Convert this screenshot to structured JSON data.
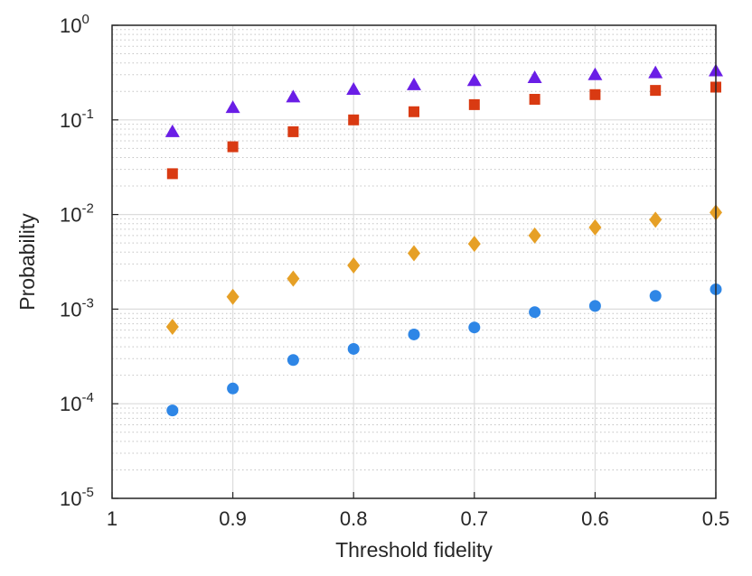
{
  "chart_data": {
    "type": "scatter",
    "title": "",
    "xlabel": "Threshold fidelity",
    "ylabel": "Probability",
    "x_reversed": true,
    "xlim": [
      0.5,
      1.0
    ],
    "y_scale": "log",
    "ylim": [
      1e-05,
      1
    ],
    "grid": true,
    "x_ticks": [
      {
        "value": 1.0,
        "label": "1"
      },
      {
        "value": 0.9,
        "label": "0.9"
      },
      {
        "value": 0.8,
        "label": "0.8"
      },
      {
        "value": 0.7,
        "label": "0.7"
      },
      {
        "value": 0.6,
        "label": "0.6"
      },
      {
        "value": 0.5,
        "label": "0.5"
      }
    ],
    "y_ticks": [
      {
        "value": 1,
        "base": "10",
        "exp": "0"
      },
      {
        "value": 0.1,
        "base": "10",
        "exp": "-1"
      },
      {
        "value": 0.01,
        "base": "10",
        "exp": "-2"
      },
      {
        "value": 0.001,
        "base": "10",
        "exp": "-3"
      },
      {
        "value": 0.0001,
        "base": "10",
        "exp": "-4"
      },
      {
        "value": 1e-05,
        "base": "10",
        "exp": "-5"
      }
    ],
    "x": [
      0.95,
      0.9,
      0.85,
      0.8,
      0.75,
      0.7,
      0.65,
      0.6,
      0.55,
      0.5
    ],
    "series": [
      {
        "marker": "triangle",
        "color": "#6a1ee6",
        "values": [
          0.075,
          0.135,
          0.175,
          0.21,
          0.235,
          0.26,
          0.28,
          0.3,
          0.315,
          0.33
        ]
      },
      {
        "marker": "square",
        "color": "#d93a12",
        "values": [
          0.027,
          0.052,
          0.075,
          0.1,
          0.122,
          0.145,
          0.165,
          0.185,
          0.205,
          0.222
        ]
      },
      {
        "marker": "diamond",
        "color": "#e6a026",
        "values": [
          0.00065,
          0.00135,
          0.0021,
          0.0029,
          0.0039,
          0.0049,
          0.006,
          0.0073,
          0.0088,
          0.0105
        ]
      },
      {
        "marker": "circle",
        "color": "#2e86e6",
        "values": [
          8.5e-05,
          0.000145,
          0.00029,
          0.00038,
          0.00054,
          0.00064,
          0.00093,
          0.00108,
          0.00138,
          0.00162
        ]
      }
    ]
  }
}
